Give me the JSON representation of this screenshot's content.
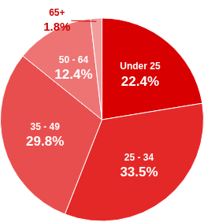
{
  "chart_data": {
    "type": "pie",
    "categories": [
      "Under 25",
      "25 - 34",
      "35 - 49",
      "50 - 64",
      "65+"
    ],
    "values": [
      22.4,
      33.5,
      29.8,
      12.4,
      1.8
    ],
    "value_labels": [
      "22.4%",
      "33.5%",
      "29.8%",
      "12.4%",
      "1.8%"
    ],
    "colors": [
      "#d80000",
      "#e42828",
      "#e94e4e",
      "#ee7474",
      "#f29c9c"
    ],
    "data_labels": true
  }
}
